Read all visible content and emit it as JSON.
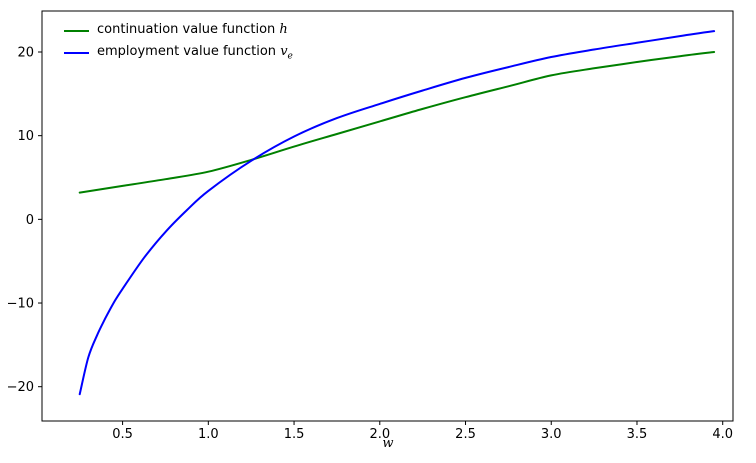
{
  "legend": {
    "items": [
      {
        "prefix": "continuation value function ",
        "symbol": "h",
        "sub": "",
        "color": "#008000"
      },
      {
        "prefix": "employment value function ",
        "symbol": "v",
        "sub": "e",
        "color": "#0000ff"
      }
    ]
  },
  "chart_data": {
    "type": "line",
    "title": "",
    "xlabel": "w",
    "ylabel": "",
    "xlim": [
      0.03,
      4.06
    ],
    "ylim": [
      -24.1,
      24.9
    ],
    "grid": false,
    "legend_position": "upper left",
    "x_ticks": [
      {
        "value": 0.5,
        "label": "0.5"
      },
      {
        "value": 1.0,
        "label": "1.0"
      },
      {
        "value": 1.5,
        "label": "1.5"
      },
      {
        "value": 2.0,
        "label": "2.0"
      },
      {
        "value": 2.5,
        "label": "2.5"
      },
      {
        "value": 3.0,
        "label": "3.0"
      },
      {
        "value": 3.5,
        "label": "3.5"
      },
      {
        "value": 4.0,
        "label": "4.0"
      }
    ],
    "y_ticks": [
      {
        "value": 20,
        "label": "20"
      },
      {
        "value": 10,
        "label": "10"
      },
      {
        "value": 0,
        "label": "0"
      },
      {
        "value": -10,
        "label": "−10"
      },
      {
        "value": -20,
        "label": "−20"
      }
    ],
    "series": [
      {
        "id": "continuation-value-h",
        "name": "continuation value function h",
        "color": "#008000",
        "linewidth": 2,
        "x": [
          0.25,
          0.5,
          0.75,
          1.0,
          1.25,
          1.5,
          1.75,
          2.0,
          2.25,
          2.5,
          2.75,
          3.0,
          3.25,
          3.5,
          3.75,
          3.95
        ],
        "y": [
          3.2,
          4.0,
          4.8,
          5.7,
          7.1,
          8.7,
          10.2,
          11.7,
          13.2,
          14.6,
          15.9,
          17.2,
          18.05,
          18.8,
          19.5,
          20.0
        ]
      },
      {
        "id": "employment-value-ve",
        "name": "employment value function v_e",
        "color": "#0000ff",
        "linewidth": 2,
        "x": [
          0.25,
          0.3,
          0.35,
          0.4,
          0.45,
          0.5,
          0.625,
          0.75,
          0.875,
          1.0,
          1.25,
          1.5,
          1.75,
          2.0,
          2.25,
          2.5,
          2.75,
          3.0,
          3.25,
          3.5,
          3.75,
          3.95
        ],
        "y": [
          -20.9,
          -16.5,
          -13.9,
          -11.8,
          -9.9,
          -8.3,
          -4.6,
          -1.5,
          1.1,
          3.4,
          7.0,
          9.9,
          12.1,
          13.8,
          15.4,
          16.9,
          18.2,
          19.4,
          20.3,
          21.1,
          21.9,
          22.5
        ]
      }
    ]
  }
}
